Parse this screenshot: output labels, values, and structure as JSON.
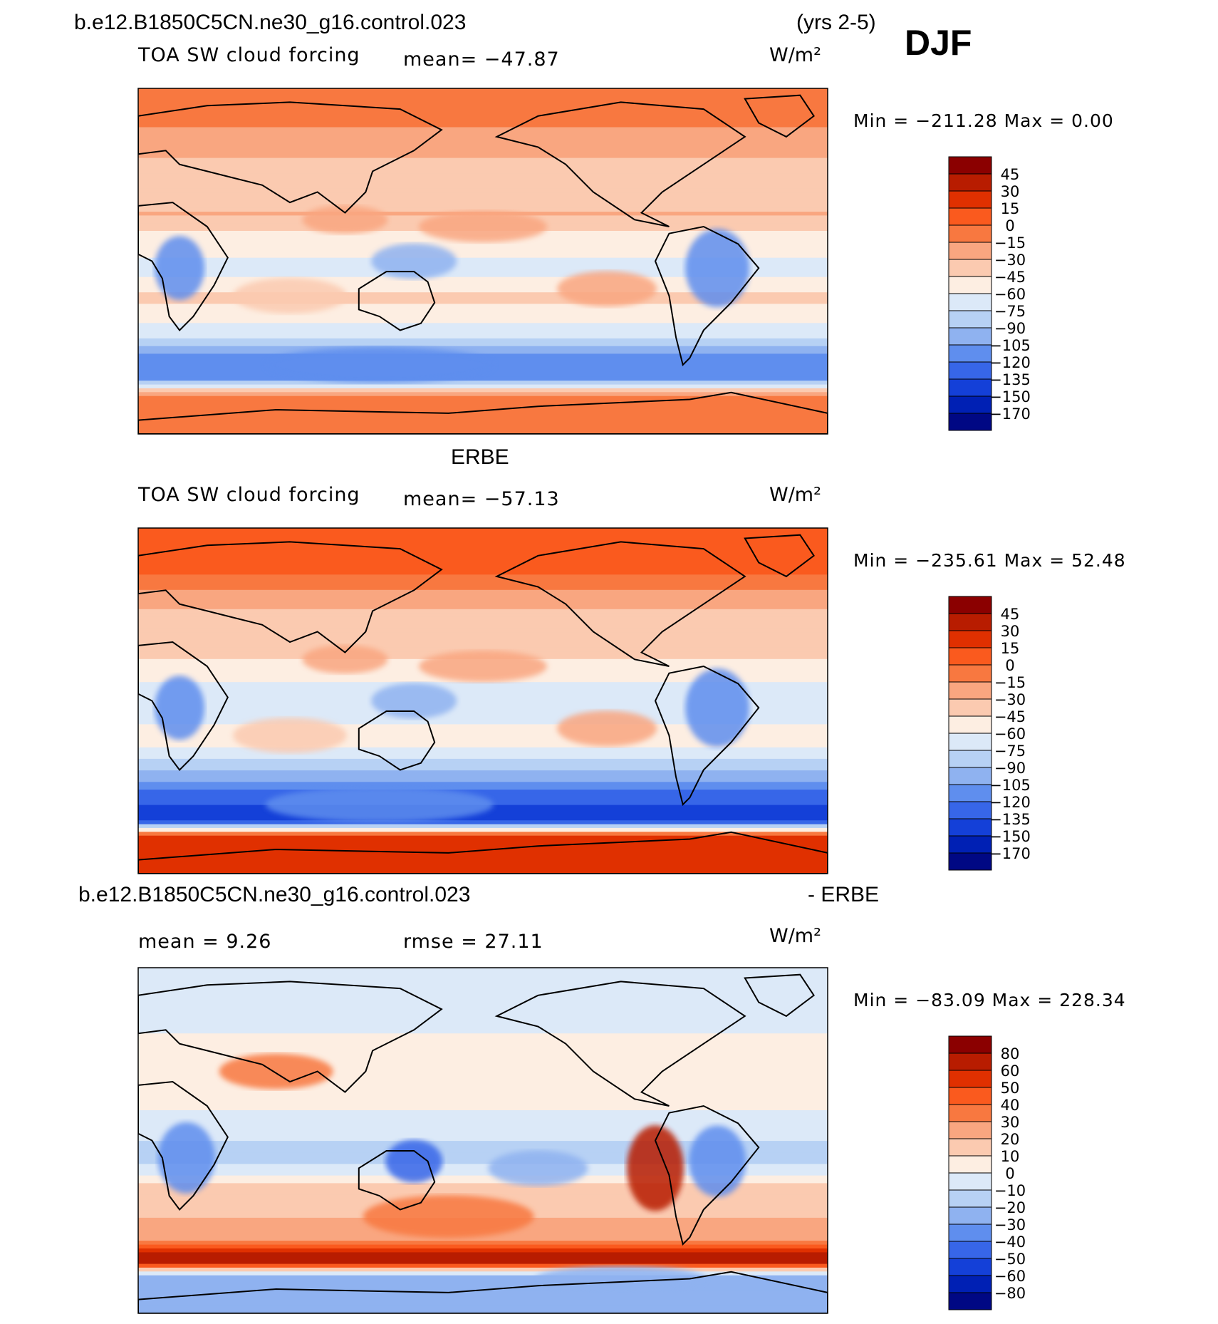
{
  "page": {
    "title": "b.e12.B1850C5CN.ne30_g16.control.023",
    "years": "(yrs 2-5)",
    "season": "DJF"
  },
  "panels": [
    {
      "id": "model",
      "heading": "",
      "left_label": "TOA SW cloud forcing",
      "stat_label": "mean= −47.87",
      "units": "W/m²",
      "minmax": "Min = −211.28 Max =    0.00",
      "levels": [
        "45",
        "30",
        "15",
        "0",
        "−15",
        "−30",
        "−45",
        "−60",
        "−75",
        "−90",
        "−105",
        "−120",
        "−135",
        "−150",
        "−170"
      ]
    },
    {
      "id": "obs",
      "heading": "ERBE",
      "left_label": "TOA SW cloud forcing",
      "stat_label": "mean= −57.13",
      "units": "W/m²",
      "minmax": "Min = −235.61 Max =  52.48",
      "levels": [
        "45",
        "30",
        "15",
        "0",
        "−15",
        "−30",
        "−45",
        "−60",
        "−75",
        "−90",
        "−105",
        "−120",
        "−135",
        "−150",
        "−170"
      ]
    },
    {
      "id": "diff",
      "heading": "b.e12.B1850C5CN.ne30_g16.control.023",
      "heading_right": "- ERBE",
      "left_label": "mean =    9.26",
      "stat_label": "rmse =   27.11",
      "units": "W/m²",
      "minmax": "Min = −83.09 Max = 228.34",
      "levels": [
        "80",
        "60",
        "50",
        "40",
        "30",
        "20",
        "10",
        "0",
        "−10",
        "−20",
        "−30",
        "−40",
        "−50",
        "−60",
        "−80"
      ]
    }
  ],
  "colors": {
    "palette": [
      "#8b0000",
      "#b81c00",
      "#e03000",
      "#fa5a1e",
      "#f87840",
      "#f9a680",
      "#fbcab0",
      "#fdeee2",
      "#dce9f8",
      "#b7d1f4",
      "#8fb2f0",
      "#5f8eee",
      "#3766e8",
      "#1440d8",
      "#0020b4",
      "#000884"
    ]
  },
  "chart_data": [
    {
      "type": "heatmap",
      "title": "TOA SW cloud forcing",
      "subtitle": "b.e12.B1850C5CN.ne30_g16.control.023 (yrs 2-5) DJF",
      "units": "W/m²",
      "mean": -47.87,
      "min": -211.28,
      "max": 0.0,
      "contour_levels": [
        45,
        30,
        15,
        0,
        -15,
        -30,
        -45,
        -60,
        -75,
        -90,
        -105,
        -120,
        -135,
        -150,
        -170
      ],
      "zonal_profile_south_to_north": [
        {
          "lat": -90,
          "value": -15
        },
        {
          "lat": -70,
          "value": -5
        },
        {
          "lat": -60,
          "value": -120
        },
        {
          "lat": -50,
          "value": -110
        },
        {
          "lat": -40,
          "value": -75
        },
        {
          "lat": -20,
          "value": -40
        },
        {
          "lat": -5,
          "value": -65
        },
        {
          "lat": 10,
          "value": -55
        },
        {
          "lat": 25,
          "value": -30
        },
        {
          "lat": 45,
          "value": -40
        },
        {
          "lat": 70,
          "value": -15
        },
        {
          "lat": 90,
          "value": -5
        }
      ]
    },
    {
      "type": "heatmap",
      "title": "TOA SW cloud forcing",
      "subtitle": "ERBE",
      "units": "W/m²",
      "mean": -57.13,
      "min": -235.61,
      "max": 52.48,
      "contour_levels": [
        45,
        30,
        15,
        0,
        -15,
        -30,
        -45,
        -60,
        -75,
        -90,
        -105,
        -120,
        -135,
        -150,
        -170
      ],
      "zonal_profile_south_to_north": [
        {
          "lat": -90,
          "value": 20
        },
        {
          "lat": -70,
          "value": 15
        },
        {
          "lat": -62,
          "value": -150
        },
        {
          "lat": -50,
          "value": -130
        },
        {
          "lat": -40,
          "value": -100
        },
        {
          "lat": -20,
          "value": -50
        },
        {
          "lat": -5,
          "value": -70
        },
        {
          "lat": 10,
          "value": -60
        },
        {
          "lat": 25,
          "value": -40
        },
        {
          "lat": 45,
          "value": -35
        },
        {
          "lat": 70,
          "value": 5
        },
        {
          "lat": 90,
          "value": 10
        }
      ]
    },
    {
      "type": "heatmap",
      "title": "b.e12.B1850C5CN.ne30_g16.control.023 - ERBE",
      "units": "W/m²",
      "mean": 9.26,
      "rmse": 27.11,
      "min": -83.09,
      "max": 228.34,
      "contour_levels": [
        80,
        60,
        50,
        40,
        30,
        20,
        10,
        0,
        -10,
        -20,
        -30,
        -40,
        -50,
        -60,
        -80
      ],
      "zonal_profile_south_to_north": [
        {
          "lat": -90,
          "value": -30
        },
        {
          "lat": -70,
          "value": -20
        },
        {
          "lat": -62,
          "value": 80
        },
        {
          "lat": -50,
          "value": 25
        },
        {
          "lat": -40,
          "value": 20
        },
        {
          "lat": -25,
          "value": 15
        },
        {
          "lat": -10,
          "value": -15
        },
        {
          "lat": 10,
          "value": -5
        },
        {
          "lat": 30,
          "value": 10
        },
        {
          "lat": 50,
          "value": 5
        },
        {
          "lat": 70,
          "value": -10
        },
        {
          "lat": 90,
          "value": -5
        }
      ]
    }
  ]
}
